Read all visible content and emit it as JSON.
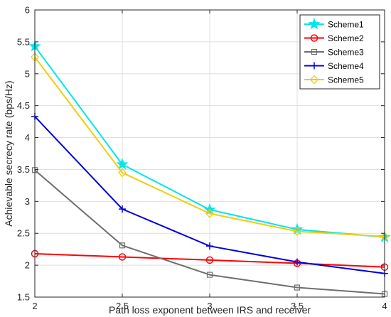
{
  "chart_data": {
    "type": "line",
    "title": "",
    "xlabel": "Path loss exponent between IRS and receiver",
    "ylabel": "Achievable secrecy rate (bps/Hz)",
    "xlim": [
      2,
      4
    ],
    "ylim": [
      1.5,
      6
    ],
    "xticks": [
      2,
      2.5,
      3,
      3.5,
      4
    ],
    "yticks": [
      1.5,
      2,
      2.5,
      3,
      3.5,
      4,
      4.5,
      5,
      5.5,
      6
    ],
    "xtick_labels": [
      "2",
      "2.5",
      "3",
      "3.5",
      "4"
    ],
    "ytick_labels": [
      "1.5",
      "2",
      "2.5",
      "3",
      "3.5",
      "4",
      "4.5",
      "5",
      "5.5",
      "6"
    ],
    "grid": true,
    "legend_position": "top-right",
    "x": [
      2,
      2.5,
      3,
      3.5,
      4
    ],
    "series": [
      {
        "name": "Scheme1",
        "color": "#00e5ee",
        "marker": "star",
        "values": [
          5.43,
          3.58,
          2.87,
          2.56,
          2.44
        ]
      },
      {
        "name": "Scheme2",
        "color": "#ff0000",
        "marker": "circle",
        "values": [
          2.18,
          2.13,
          2.08,
          2.03,
          1.97
        ]
      },
      {
        "name": "Scheme3",
        "color": "#6e6e6e",
        "marker": "square",
        "values": [
          3.49,
          2.31,
          1.85,
          1.65,
          1.55
        ]
      },
      {
        "name": "Scheme4",
        "color": "#0000dd",
        "marker": "plus",
        "values": [
          4.33,
          2.88,
          2.3,
          2.05,
          1.87
        ]
      },
      {
        "name": "Scheme5",
        "color": "#f2cc0c",
        "marker": "diamond",
        "values": [
          5.26,
          3.45,
          2.81,
          2.53,
          2.45
        ]
      }
    ]
  }
}
